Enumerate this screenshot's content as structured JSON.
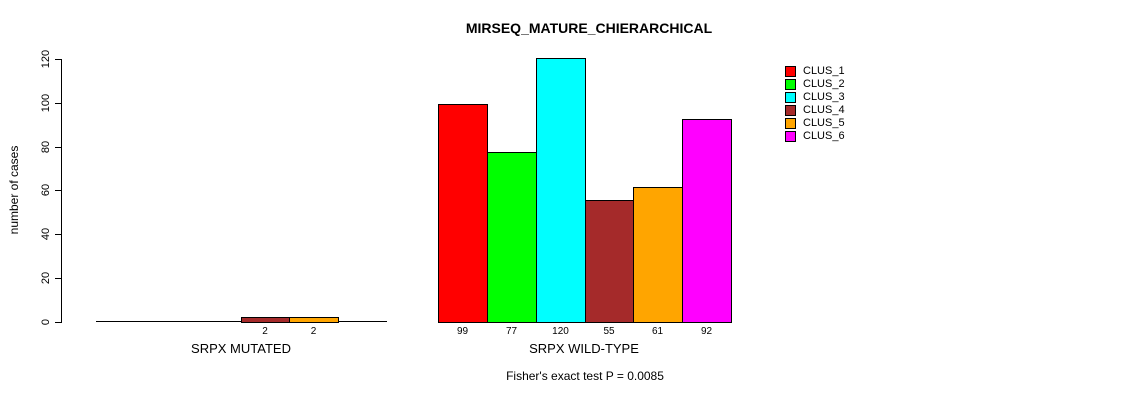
{
  "title": "MIRSEQ_MATURE_CHIERARCHICAL",
  "subtitle": "Fisher's exact test P = 0.0085",
  "y_axis": {
    "label": "number of cases",
    "ticks": [
      0,
      20,
      40,
      60,
      80,
      100,
      120
    ]
  },
  "chart_data": {
    "type": "bar",
    "title": "MIRSEQ_MATURE_CHIERARCHICAL",
    "categories": [
      "SRPX MUTATED",
      "SRPX WILD-TYPE"
    ],
    "series": [
      {
        "name": "CLUS_1",
        "color": "#FF0000",
        "values": [
          0,
          99
        ]
      },
      {
        "name": "CLUS_2",
        "color": "#00FF00",
        "values": [
          0,
          77
        ]
      },
      {
        "name": "CLUS_3",
        "color": "#00FFFF",
        "values": [
          0,
          120
        ]
      },
      {
        "name": "CLUS_4",
        "color": "#A52A2A",
        "values": [
          2,
          55
        ]
      },
      {
        "name": "CLUS_5",
        "color": "#FFA500",
        "values": [
          2,
          61
        ]
      },
      {
        "name": "CLUS_6",
        "color": "#FF00FF",
        "values": [
          0,
          92
        ]
      }
    ],
    "bar_value_labels": {
      "SRPX MUTATED": [
        null,
        null,
        null,
        2,
        2,
        null
      ],
      "SRPX WILD-TYPE": [
        99,
        77,
        120,
        55,
        61,
        92
      ]
    },
    "xlabel": "",
    "ylabel": "number of cases",
    "ylim": [
      0,
      120
    ],
    "annotation": "Fisher's exact test P = 0.0085",
    "legend_position": "right",
    "grid": false,
    "axis_color": "#000000",
    "background": "#FFFFFF"
  }
}
